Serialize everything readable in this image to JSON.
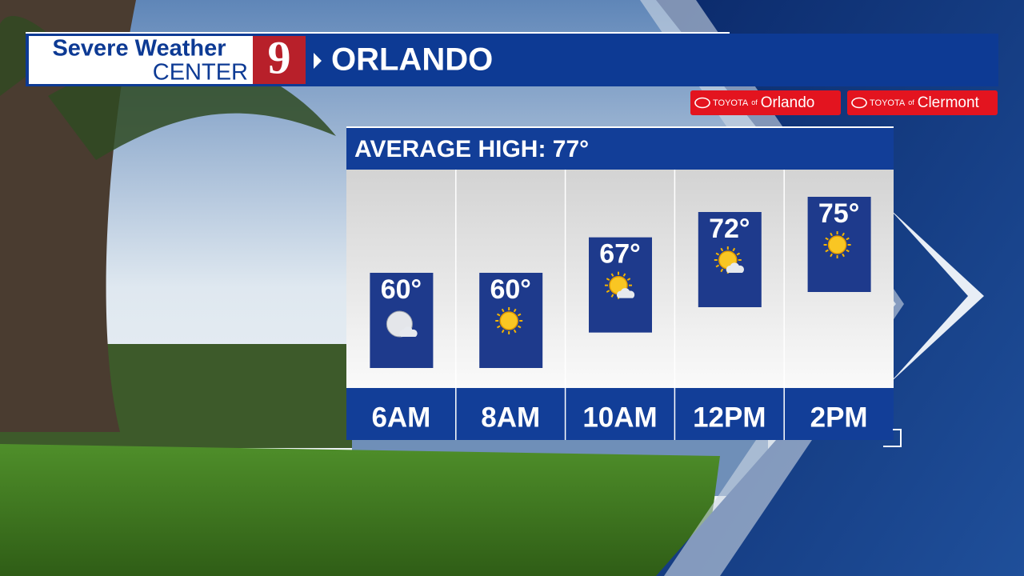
{
  "header": {
    "brand_line1": "Severe Weather",
    "brand_line2": "CENTER",
    "channel": "9",
    "location": "ORLANDO"
  },
  "sponsors": [
    {
      "brand": "TOYOTA",
      "of": "of",
      "place": "Orlando"
    },
    {
      "brand": "TOYOTA",
      "of": "of",
      "place": "Clermont"
    }
  ],
  "chart_data": {
    "type": "bar",
    "title": "AVERAGE HIGH: 77°",
    "categories": [
      "6AM",
      "8AM",
      "10AM",
      "12PM",
      "2PM"
    ],
    "values": [
      60,
      60,
      67,
      72,
      75
    ],
    "value_labels": [
      "60°",
      "60°",
      "67°",
      "72°",
      "75°"
    ],
    "color": "#1e3a8c"
  }
}
